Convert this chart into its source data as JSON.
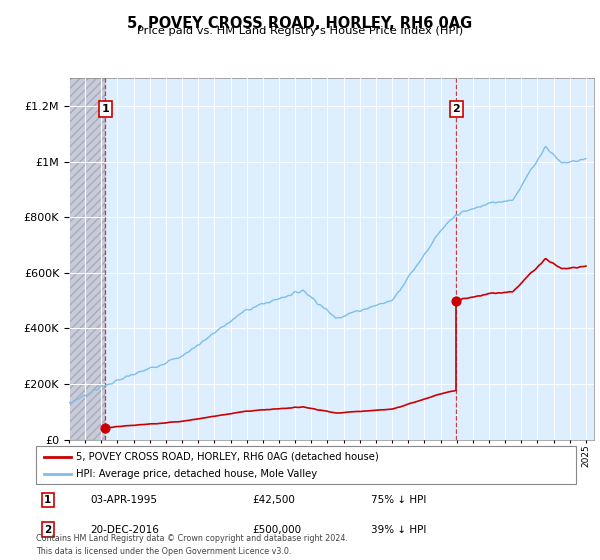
{
  "title": "5, POVEY CROSS ROAD, HORLEY, RH6 0AG",
  "subtitle": "Price paid vs. HM Land Registry's House Price Index (HPI)",
  "legend_line1": "5, POVEY CROSS ROAD, HORLEY, RH6 0AG (detached house)",
  "legend_line2": "HPI: Average price, detached house, Mole Valley",
  "annotation1_date": "03-APR-1995",
  "annotation1_price": "£42,500",
  "annotation1_hpi": "75% ↓ HPI",
  "annotation2_date": "20-DEC-2016",
  "annotation2_price": "£500,000",
  "annotation2_hpi": "39% ↓ HPI",
  "sale1_year": 1995.25,
  "sale1_value": 42500,
  "sale2_year": 2016.97,
  "sale2_value": 500000,
  "hpi_color": "#7bbfea",
  "sale_color": "#cc0000",
  "annotation_box_color": "#cc0000",
  "background_color": "#ddeeff",
  "chart_bg": "#ddeeff",
  "hatch_bg": "#c8c8d8",
  "ylim_max": 1300000,
  "footer": "Contains HM Land Registry data © Crown copyright and database right 2024.\nThis data is licensed under the Open Government Licence v3.0."
}
